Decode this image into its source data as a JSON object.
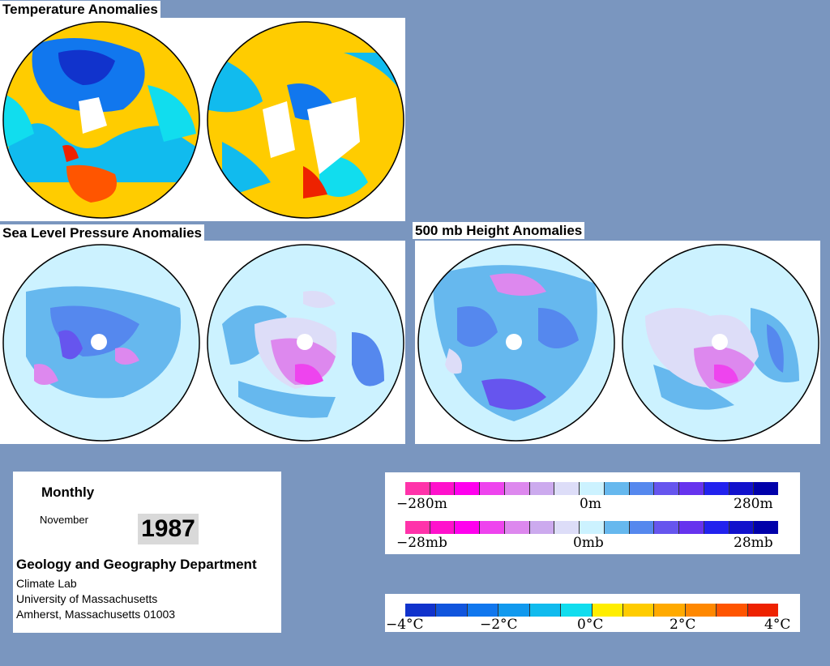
{
  "sections": {
    "temperature": "Temperature Anomalies",
    "slp": "Sea Level Pressure Anomalies",
    "height500": "500 mb Height Anomalies"
  },
  "info": {
    "period": "Monthly",
    "month": "November",
    "year": "1987",
    "department": "Geology and Geography Department",
    "lab": "Climate Lab",
    "university": "University of Massachusetts",
    "address": "Amherst, Massachusetts 01003"
  },
  "legends": {
    "height": {
      "left": "−280m",
      "center": "0m",
      "right": "280m"
    },
    "pressure": {
      "left": "−28mb",
      "center": "0mb",
      "right": "28mb"
    },
    "temperature": {
      "t1": "−4°C",
      "t2": "−2°C",
      "t3": "0°C",
      "t4": "2°C",
      "t5": "4°C"
    }
  },
  "colors": {
    "background": "#7a96bf",
    "anomaly_scale": [
      "#ff33aa",
      "#ff11cc",
      "#ff00ee",
      "#ee44ee",
      "#dd88ee",
      "#ccaaee",
      "#ddddf8",
      "#ccf2ff",
      "#66b8ee",
      "#5588ee",
      "#6655ee",
      "#6633ee",
      "#2222ee",
      "#1111cc",
      "#0000aa"
    ],
    "temperature_scale": [
      "#1133cc",
      "#1155dd",
      "#1177ee",
      "#1199ee",
      "#11bbee",
      "#11ddee",
      "#ffee00",
      "#ffcc00",
      "#ffaa00",
      "#ff8800",
      "#ff5500",
      "#ee2200"
    ]
  }
}
